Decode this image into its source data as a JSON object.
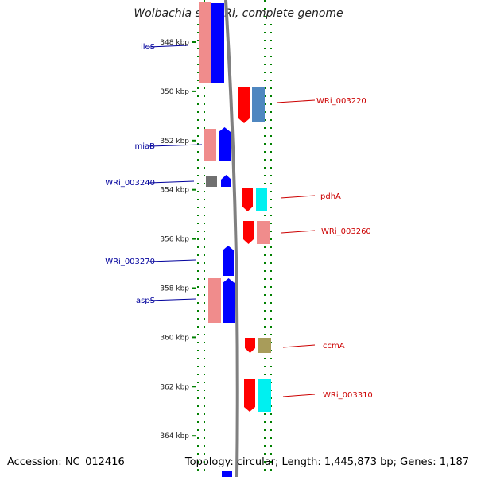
{
  "header": {
    "title": "Wolbachia sp. wRi, complete genome"
  },
  "footer": {
    "accession": "Accession: NC_012416",
    "topology": "Topology: circular; Length: 1,445,873 bp; Genes: 1,187"
  },
  "axis": {
    "unit": "kbp",
    "ticks": [
      "348 kbp",
      "350 kbp",
      "352 kbp",
      "354 kbp",
      "356 kbp",
      "358 kbp",
      "360 kbp",
      "362 kbp",
      "364 kbp"
    ]
  },
  "colors": {
    "left_label": "#00009c",
    "right_label": "#cc0000",
    "backbone": "#808080",
    "guide_dots": "#008000",
    "pink": "#f08c8c",
    "blue": "#0000ff",
    "red": "#ff0000",
    "steelblue": "#4f87c0",
    "cyan": "#00f0f0",
    "gray": "#707070",
    "olive": "#a89c5a"
  },
  "genes_left": [
    {
      "name": "ileS",
      "color": "blue",
      "pink_pair": true
    },
    {
      "name": "miaB",
      "color": "blue",
      "pink_pair": true
    },
    {
      "name": "WRi_003240",
      "color": "blue",
      "pink_pair": false,
      "gray_pair": true
    },
    {
      "name": "WRi_003270",
      "color": "blue",
      "pink_pair": false
    },
    {
      "name": "aspS",
      "color": "blue",
      "pink_pair": true
    }
  ],
  "genes_right": [
    {
      "name": "WRi_003220",
      "color": "red",
      "pair": "steelblue"
    },
    {
      "name": "pdhA",
      "color": "red",
      "pair": "cyan"
    },
    {
      "name": "WRi_003260",
      "color": "red",
      "pair": "pink"
    },
    {
      "name": "ccmA",
      "color": "red",
      "pair": "olive"
    },
    {
      "name": "WRi_003310",
      "color": "red",
      "pair": "cyan"
    }
  ]
}
